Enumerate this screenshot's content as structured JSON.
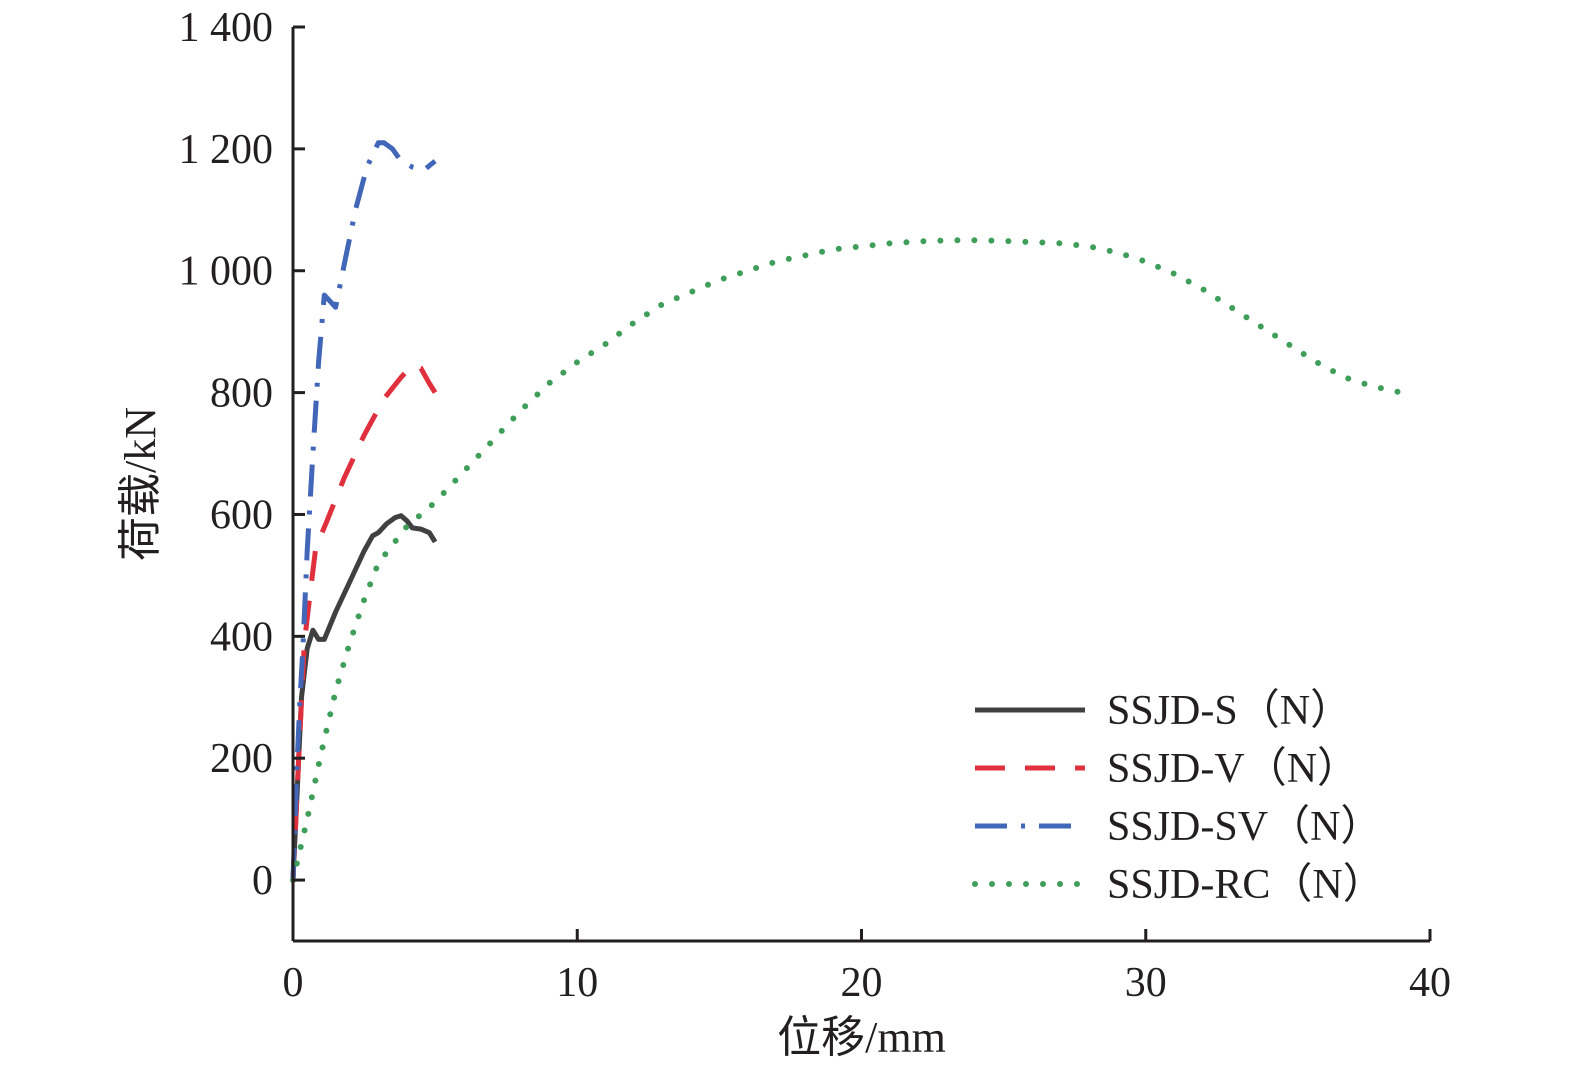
{
  "chart_data": {
    "type": "line",
    "xlabel": "位移/mm",
    "ylabel": "荷载/kN",
    "xlim": [
      0,
      40
    ],
    "ylim": [
      -100,
      1400
    ],
    "x_ticks": [
      "0",
      "10",
      "20",
      "30",
      "40"
    ],
    "y_ticks": [
      "0",
      "200",
      "400",
      "600",
      "800",
      "1 000",
      "1 200",
      "1 400"
    ],
    "y_tick_values": [
      0,
      200,
      400,
      600,
      800,
      1000,
      1200,
      1400
    ],
    "x_tick_values": [
      0,
      10,
      20,
      30,
      40
    ],
    "grid": false,
    "legend_position": "bottom-right",
    "series": [
      {
        "name": "SSJD-S（N）",
        "color": "#404040",
        "style": "solid",
        "x": [
          0,
          0.15,
          0.3,
          0.5,
          0.7,
          0.9,
          1.1,
          1.5,
          2.0,
          2.5,
          2.8,
          3.0,
          3.3,
          3.6,
          3.8,
          4.0,
          4.2,
          4.5,
          4.8,
          5.0
        ],
        "y": [
          0,
          150,
          300,
          380,
          410,
          395,
          395,
          440,
          490,
          540,
          565,
          570,
          585,
          595,
          598,
          590,
          578,
          576,
          570,
          555
        ]
      },
      {
        "name": "SSJD-V（N）",
        "color": "#e0303e",
        "style": "dashed",
        "x": [
          0,
          0.2,
          0.4,
          0.6,
          0.8,
          1.2,
          1.8,
          2.5,
          3.2,
          3.8,
          4.2,
          4.5,
          4.8,
          5.0
        ],
        "y": [
          0,
          200,
          390,
          470,
          545,
          590,
          660,
          730,
          790,
          825,
          845,
          840,
          815,
          800
        ]
      },
      {
        "name": "SSJD-SV（N）",
        "color": "#4266b8",
        "style": "dashdot",
        "x": [
          0,
          0.15,
          0.25,
          0.35,
          0.5,
          0.7,
          0.9,
          1.1,
          1.3,
          1.5,
          1.8,
          2.2,
          2.6,
          3.0,
          3.2,
          3.5,
          3.8,
          4.2,
          4.6,
          5.0
        ],
        "y": [
          0,
          200,
          300,
          380,
          540,
          700,
          850,
          960,
          950,
          940,
          1010,
          1100,
          1170,
          1210,
          1210,
          1200,
          1180,
          1170,
          1165,
          1180
        ]
      },
      {
        "name": "SSJD-RC（N）",
        "color": "#3f9e5a",
        "style": "dotted",
        "x": [
          0,
          0.5,
          1.0,
          1.5,
          2.0,
          2.5,
          3.0,
          4.0,
          5.0,
          6.0,
          7.0,
          8.0,
          9.0,
          10.0,
          11.0,
          12.0,
          13.0,
          14.0,
          15.0,
          16.0,
          17.0,
          18.0,
          19.0,
          20.0,
          21.0,
          22.0,
          23.0,
          24.0,
          25.0,
          26.0,
          27.0,
          28.0,
          29.0,
          30.0,
          31.0,
          32.0,
          33.0,
          34.0,
          35.0,
          36.0,
          37.0,
          38.0,
          39.0
        ],
        "y": [
          0,
          100,
          210,
          310,
          390,
          460,
          520,
          580,
          620,
          670,
          720,
          770,
          815,
          850,
          880,
          915,
          945,
          965,
          985,
          1000,
          1015,
          1025,
          1035,
          1040,
          1045,
          1048,
          1050,
          1050,
          1049,
          1047,
          1045,
          1040,
          1030,
          1015,
          995,
          970,
          940,
          910,
          880,
          850,
          825,
          810,
          800
        ]
      }
    ]
  }
}
